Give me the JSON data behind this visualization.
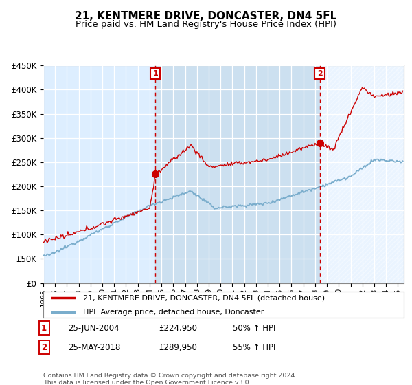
{
  "title": "21, KENTMERE DRIVE, DONCASTER, DN4 5FL",
  "subtitle": "Price paid vs. HM Land Registry's House Price Index (HPI)",
  "ylim": [
    0,
    450000
  ],
  "yticks": [
    0,
    50000,
    100000,
    150000,
    200000,
    250000,
    300000,
    350000,
    400000,
    450000
  ],
  "ytick_labels": [
    "£0",
    "£50K",
    "£100K",
    "£150K",
    "£200K",
    "£250K",
    "£300K",
    "£350K",
    "£400K",
    "£450K"
  ],
  "xlim_start": 1995.0,
  "xlim_end": 2025.5,
  "sale1_x": 2004.48,
  "sale1_y": 224950,
  "sale1_label": "25-JUN-2004",
  "sale1_price": "£224,950",
  "sale1_hpi": "50% ↑ HPI",
  "sale2_x": 2018.39,
  "sale2_y": 289950,
  "sale2_label": "25-MAY-2018",
  "sale2_price": "£289,950",
  "sale2_hpi": "55% ↑ HPI",
  "red_color": "#cc0000",
  "blue_color": "#7aadcc",
  "bg_color": "#ddeeff",
  "shade_color": "#cce0f0",
  "grid_color": "#ffffff",
  "legend_line1": "21, KENTMERE DRIVE, DONCASTER, DN4 5FL (detached house)",
  "legend_line2": "HPI: Average price, detached house, Doncaster",
  "footer": "Contains HM Land Registry data © Crown copyright and database right 2024.\nThis data is licensed under the Open Government Licence v3.0.",
  "title_fontsize": 11,
  "subtitle_fontsize": 9.5
}
